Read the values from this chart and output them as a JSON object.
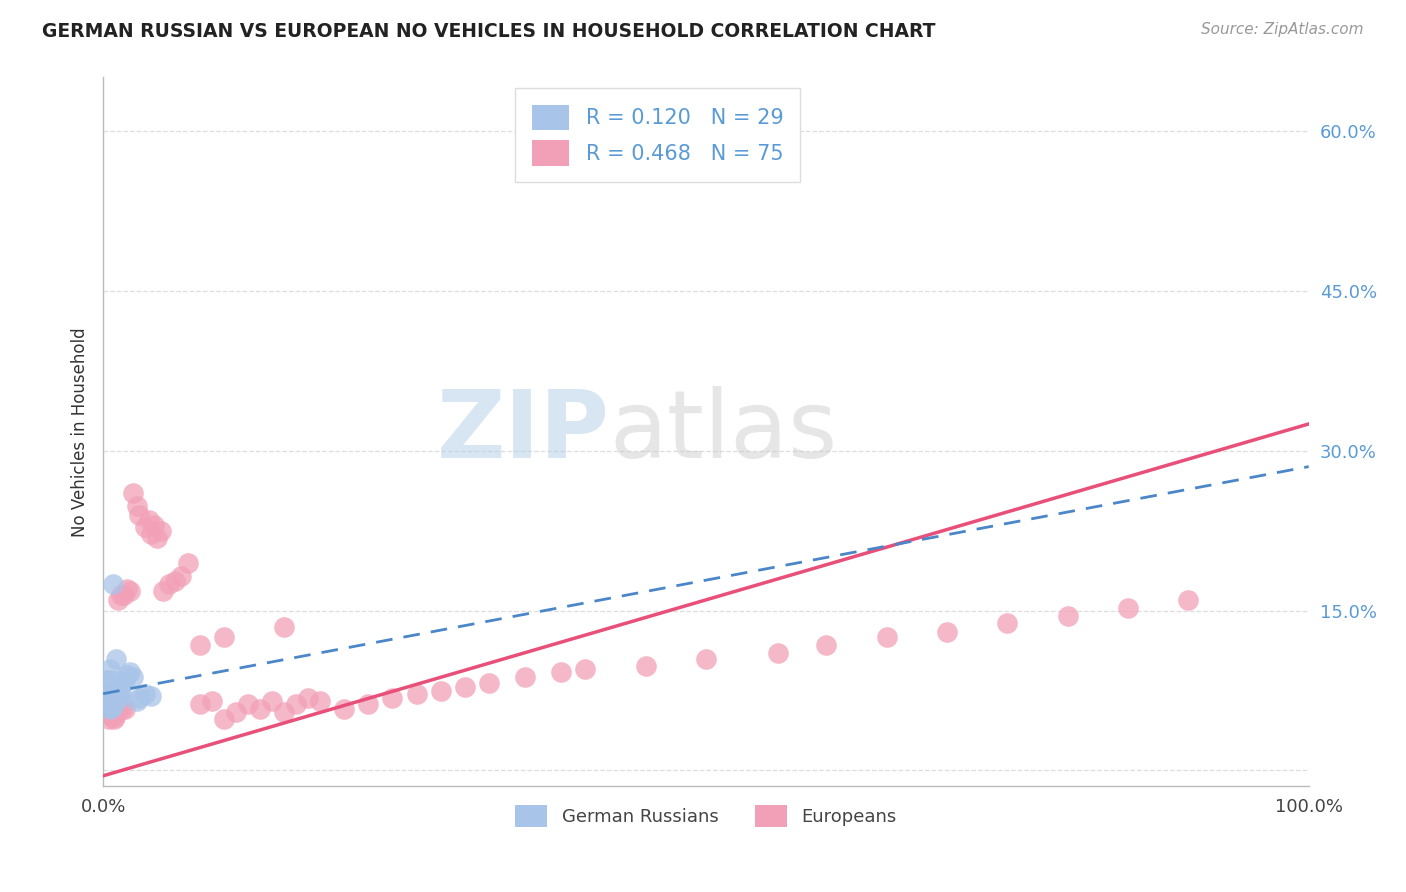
{
  "title": "GERMAN RUSSIAN VS EUROPEAN NO VEHICLES IN HOUSEHOLD CORRELATION CHART",
  "source": "Source: ZipAtlas.com",
  "ylabel": "No Vehicles in Household",
  "y_ticks": [
    0.0,
    0.15,
    0.3,
    0.45,
    0.6
  ],
  "y_tick_labels": [
    "",
    "15.0%",
    "30.0%",
    "45.0%",
    "60.0%"
  ],
  "x_range": [
    0.0,
    1.0
  ],
  "y_range": [
    -0.015,
    0.65
  ],
  "legend_r1": "R = 0.120",
  "legend_n1": "N = 29",
  "legend_r2": "R = 0.468",
  "legend_n2": "N = 75",
  "german_russian_color": "#a8c4e8",
  "european_color": "#f2a0b8",
  "german_russian_line_color": "#4a86c8",
  "european_line_color": "#e8507a",
  "gr_x": [
    0.002,
    0.003,
    0.004,
    0.004,
    0.005,
    0.005,
    0.006,
    0.006,
    0.007,
    0.007,
    0.008,
    0.008,
    0.009,
    0.01,
    0.01,
    0.011,
    0.012,
    0.013,
    0.014,
    0.015,
    0.016,
    0.018,
    0.02,
    0.022,
    0.025,
    0.028,
    0.03,
    0.035,
    0.04
  ],
  "gr_y": [
    0.085,
    0.078,
    0.072,
    0.068,
    0.065,
    0.06,
    0.095,
    0.058,
    0.085,
    0.072,
    0.175,
    0.06,
    0.065,
    0.068,
    0.075,
    0.105,
    0.07,
    0.075,
    0.068,
    0.072,
    0.08,
    0.085,
    0.09,
    0.092,
    0.088,
    0.065,
    0.068,
    0.072,
    0.07
  ],
  "eu_x": [
    0.002,
    0.003,
    0.003,
    0.004,
    0.004,
    0.005,
    0.005,
    0.006,
    0.006,
    0.007,
    0.007,
    0.008,
    0.008,
    0.009,
    0.009,
    0.01,
    0.01,
    0.011,
    0.012,
    0.013,
    0.014,
    0.015,
    0.016,
    0.017,
    0.018,
    0.02,
    0.022,
    0.025,
    0.028,
    0.03,
    0.035,
    0.038,
    0.04,
    0.042,
    0.045,
    0.048,
    0.05,
    0.055,
    0.06,
    0.065,
    0.07,
    0.08,
    0.09,
    0.1,
    0.11,
    0.12,
    0.13,
    0.14,
    0.15,
    0.16,
    0.17,
    0.18,
    0.2,
    0.22,
    0.24,
    0.26,
    0.28,
    0.3,
    0.32,
    0.35,
    0.38,
    0.4,
    0.45,
    0.5,
    0.56,
    0.6,
    0.65,
    0.7,
    0.75,
    0.8,
    0.85,
    0.9,
    0.1,
    0.08,
    0.15
  ],
  "eu_y": [
    0.065,
    0.058,
    0.07,
    0.055,
    0.062,
    0.06,
    0.048,
    0.055,
    0.068,
    0.058,
    0.05,
    0.052,
    0.062,
    0.048,
    0.055,
    0.058,
    0.05,
    0.06,
    0.16,
    0.058,
    0.062,
    0.165,
    0.058,
    0.165,
    0.058,
    0.17,
    0.168,
    0.26,
    0.248,
    0.24,
    0.228,
    0.235,
    0.222,
    0.23,
    0.218,
    0.225,
    0.168,
    0.175,
    0.178,
    0.182,
    0.195,
    0.062,
    0.065,
    0.048,
    0.055,
    0.062,
    0.058,
    0.065,
    0.055,
    0.062,
    0.068,
    0.065,
    0.058,
    0.062,
    0.068,
    0.072,
    0.075,
    0.078,
    0.082,
    0.088,
    0.092,
    0.095,
    0.098,
    0.105,
    0.11,
    0.118,
    0.125,
    0.13,
    0.138,
    0.145,
    0.152,
    0.16,
    0.125,
    0.118,
    0.135
  ],
  "gr_line_x0": 0.0,
  "gr_line_x1": 1.0,
  "gr_line_y0": 0.072,
  "gr_line_y1": 0.285,
  "eu_line_x0": 0.0,
  "eu_line_x1": 1.0,
  "eu_line_y0": -0.005,
  "eu_line_y1": 0.325
}
